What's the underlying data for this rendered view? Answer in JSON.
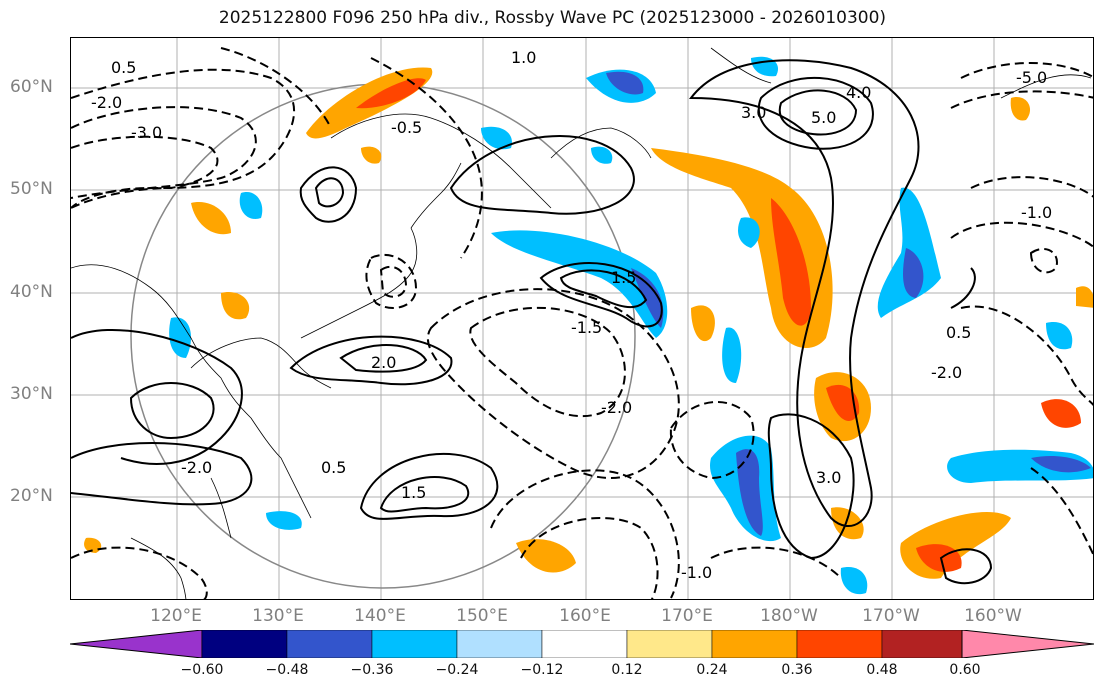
{
  "title": "2025122800 F096 250 hPa div., Rossby Wave PC (2025123000 - 2026010300)",
  "lat_labels": [
    "60°N",
    "50°N",
    "40°N",
    "30°N",
    "20°N"
  ],
  "lon_labels": [
    "120°E",
    "130°E",
    "140°E",
    "150°E",
    "160°E",
    "170°E",
    "180°W",
    "170°W",
    "160°W"
  ],
  "colorbar": {
    "ticks": [
      "−0.60",
      "−0.48",
      "−0.36",
      "−0.24",
      "−0.12",
      "0.12",
      "0.24",
      "0.36",
      "0.48",
      "0.60"
    ],
    "colors": [
      "#9933cc",
      "#000080",
      "#3355cc",
      "#00bfff",
      "#b0e0ff",
      "#ffffff",
      "#ffe88a",
      "#ffa500",
      "#ff4500",
      "#b22222",
      "#ff88aa"
    ]
  },
  "contour_labels": [
    "0.5",
    "1.0",
    "1.5",
    "2.0",
    "3.0",
    "5.0",
    "4.0",
    "-0.5",
    "-1.0",
    "-1.5",
    "-2.0",
    "-3.0",
    "-5.0"
  ]
}
